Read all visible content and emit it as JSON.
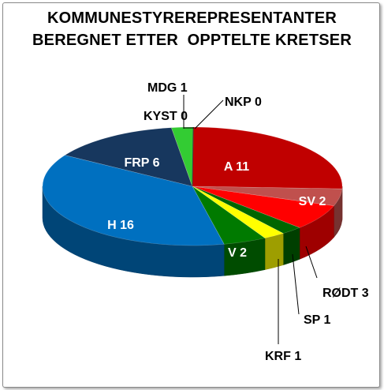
{
  "chart_data": {
    "type": "pie",
    "title_lines": [
      "KOMMUNESTYREREPRESENTANTER",
      "BEREGNET ETTER  OPPTELTE KRETSER"
    ],
    "slices": [
      {
        "label": "A 11",
        "party": "A",
        "value": 11,
        "color": "#c00000"
      },
      {
        "label": "SV 2",
        "party": "SV",
        "value": 2,
        "color": "#c0504d"
      },
      {
        "label": "RØDT 3",
        "party": "RØDT",
        "value": 3,
        "color": "#ff0000"
      },
      {
        "label": "SP 1",
        "party": "SP",
        "value": 1,
        "color": "#006600"
      },
      {
        "label": "KRF 1",
        "party": "KRF",
        "value": 1,
        "color": "#ffff00"
      },
      {
        "label": "V 2",
        "party": "V",
        "value": 2,
        "color": "#007a00"
      },
      {
        "label": "H 16",
        "party": "H",
        "value": 16,
        "color": "#0070c0"
      },
      {
        "label": "FRP 6",
        "party": "FRP",
        "value": 6,
        "color": "#17375e"
      },
      {
        "label": "KYST 0",
        "party": "KYST",
        "value": 0,
        "color": "#7f7f7f"
      },
      {
        "label": "MDG 1",
        "party": "MDG",
        "value": 1,
        "color": "#33cc33"
      },
      {
        "label": "NKP 0",
        "party": "NKP",
        "value": 0,
        "color": "#404040"
      }
    ]
  }
}
